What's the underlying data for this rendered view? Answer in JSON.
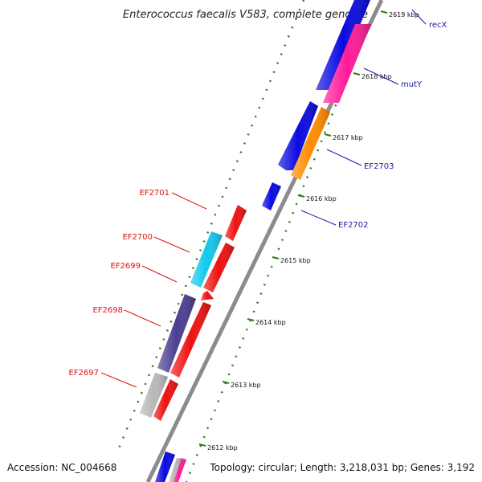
{
  "title": "Enterococcus faecalis V583, complete genome",
  "footer": {
    "accession": "Accession: NC_004668",
    "summary": "Topology: circular; Length: 3,218,031 bp; Genes: 3,192"
  },
  "colors": {
    "backbone": "#8c8c8c",
    "ticks": "#2e7d1e",
    "forward_label": "#1a1aaa",
    "reverse_label": "#dd1111",
    "blue": "#0a0ae0",
    "magenta": "#ff1a9a",
    "orange": "#ff8c00",
    "red": "#ee1111",
    "cyan": "#12c8ee",
    "navy": "#4a3e90",
    "gray": "#b8b8b8"
  },
  "ticks": [
    {
      "label": "2612 kbp"
    },
    {
      "label": "2613 kbp"
    },
    {
      "label": "2614 kbp"
    },
    {
      "label": "2615 kbp"
    },
    {
      "label": "2616 kbp"
    },
    {
      "label": "2617 kbp"
    },
    {
      "label": "2618 kbp"
    },
    {
      "label": "2619 kbp"
    }
  ],
  "gene_labels": [
    {
      "name": "recX",
      "strand": "forward"
    },
    {
      "name": "mutY",
      "strand": "forward"
    },
    {
      "name": "EF2703",
      "strand": "forward"
    },
    {
      "name": "EF2702",
      "strand": "forward"
    },
    {
      "name": "EF2701",
      "strand": "reverse"
    },
    {
      "name": "EF2700",
      "strand": "reverse"
    },
    {
      "name": "EF2699",
      "strand": "reverse"
    },
    {
      "name": "EF2698",
      "strand": "reverse"
    },
    {
      "name": "EF2697",
      "strand": "reverse"
    }
  ]
}
